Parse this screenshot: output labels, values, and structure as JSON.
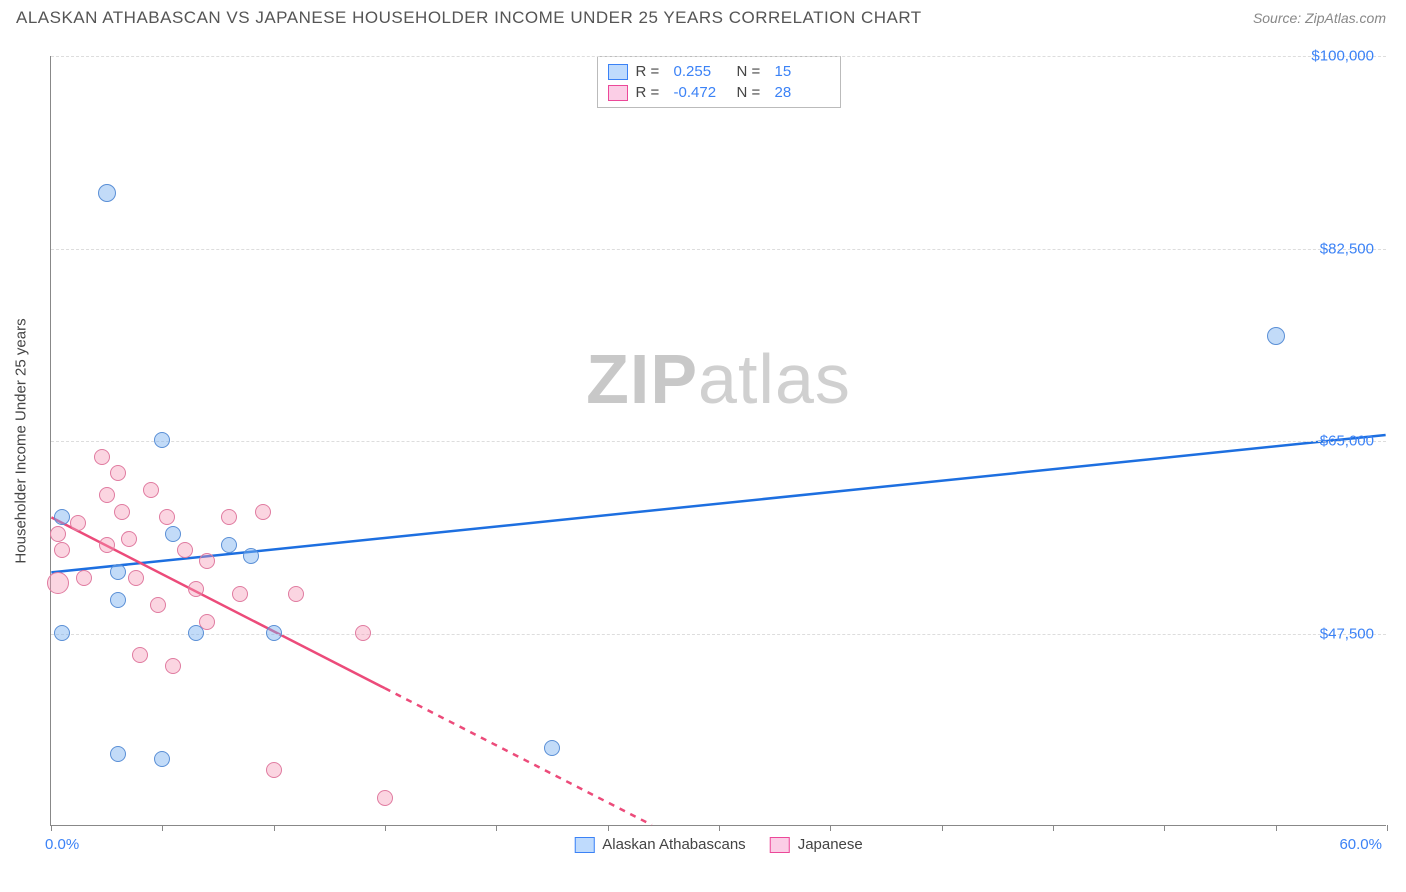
{
  "header": {
    "title": "ALASKAN ATHABASCAN VS JAPANESE HOUSEHOLDER INCOME UNDER 25 YEARS CORRELATION CHART",
    "source": "Source: ZipAtlas.com"
  },
  "chart": {
    "type": "scatter",
    "ylabel": "Householder Income Under 25 years",
    "watermark_prefix": "ZIP",
    "watermark_suffix": "atlas",
    "xlim": [
      0,
      60
    ],
    "ylim": [
      30000,
      100000
    ],
    "xmin_label": "0.0%",
    "xmax_label": "60.0%",
    "xtick_positions": [
      0,
      5,
      10,
      15,
      20,
      25,
      30,
      35,
      40,
      45,
      50,
      55,
      60
    ],
    "yticks": [
      {
        "v": 47500,
        "label": "$47,500"
      },
      {
        "v": 65000,
        "label": "$65,000"
      },
      {
        "v": 82500,
        "label": "$82,500"
      },
      {
        "v": 100000,
        "label": "$100,000"
      }
    ],
    "background_color": "#ffffff",
    "grid_color": "#dddddd",
    "marker_radius": 8,
    "series": {
      "blue": {
        "name": "Alaskan Athabascans",
        "color_fill": "rgba(120,175,240,0.45)",
        "color_stroke": "#5a8fd6",
        "trend_color": "#1d6fe0",
        "R": "0.255",
        "N": "15",
        "trend": {
          "x1": 0,
          "y1": 53000,
          "x2": 60,
          "y2": 65500,
          "solid_until_x": 60
        },
        "points": [
          {
            "x": 2.5,
            "y": 87500,
            "r": 9
          },
          {
            "x": 0.5,
            "y": 58000,
            "r": 8
          },
          {
            "x": 5.0,
            "y": 65000,
            "r": 8
          },
          {
            "x": 5.5,
            "y": 56500,
            "r": 8
          },
          {
            "x": 8.0,
            "y": 55500,
            "r": 8
          },
          {
            "x": 9.0,
            "y": 54500,
            "r": 8
          },
          {
            "x": 3.0,
            "y": 53000,
            "r": 8
          },
          {
            "x": 3.0,
            "y": 50500,
            "r": 8
          },
          {
            "x": 0.5,
            "y": 47500,
            "r": 8
          },
          {
            "x": 6.5,
            "y": 47500,
            "r": 8
          },
          {
            "x": 10.0,
            "y": 47500,
            "r": 8
          },
          {
            "x": 3.0,
            "y": 36500,
            "r": 8
          },
          {
            "x": 5.0,
            "y": 36000,
            "r": 8
          },
          {
            "x": 22.5,
            "y": 37000,
            "r": 8
          },
          {
            "x": 55.0,
            "y": 74500,
            "r": 9
          }
        ]
      },
      "pink": {
        "name": "Japanese",
        "color_fill": "rgba(244,150,180,0.4)",
        "color_stroke": "#e07ba0",
        "trend_color": "#ec4b7a",
        "R": "-0.472",
        "N": "28",
        "trend": {
          "x1": 0,
          "y1": 58000,
          "x2": 27,
          "y2": 30000,
          "dash_from_x": 15,
          "dash_to_x": 27
        },
        "points": [
          {
            "x": 0.3,
            "y": 56500,
            "r": 8
          },
          {
            "x": 0.5,
            "y": 55000,
            "r": 8
          },
          {
            "x": 0.3,
            "y": 52000,
            "r": 11
          },
          {
            "x": 1.2,
            "y": 57500,
            "r": 8
          },
          {
            "x": 1.5,
            "y": 52500,
            "r": 8
          },
          {
            "x": 2.3,
            "y": 63500,
            "r": 8
          },
          {
            "x": 2.5,
            "y": 60000,
            "r": 8
          },
          {
            "x": 2.5,
            "y": 55500,
            "r": 8
          },
          {
            "x": 3.0,
            "y": 62000,
            "r": 8
          },
          {
            "x": 3.2,
            "y": 58500,
            "r": 8
          },
          {
            "x": 3.5,
            "y": 56000,
            "r": 8
          },
          {
            "x": 3.8,
            "y": 52500,
            "r": 8
          },
          {
            "x": 4.0,
            "y": 45500,
            "r": 8
          },
          {
            "x": 4.5,
            "y": 60500,
            "r": 8
          },
          {
            "x": 4.8,
            "y": 50000,
            "r": 8
          },
          {
            "x": 5.2,
            "y": 58000,
            "r": 8
          },
          {
            "x": 5.5,
            "y": 44500,
            "r": 8
          },
          {
            "x": 6.0,
            "y": 55000,
            "r": 8
          },
          {
            "x": 6.5,
            "y": 51500,
            "r": 8
          },
          {
            "x": 7.0,
            "y": 54000,
            "r": 8
          },
          {
            "x": 8.0,
            "y": 58000,
            "r": 8
          },
          {
            "x": 8.5,
            "y": 51000,
            "r": 8
          },
          {
            "x": 9.5,
            "y": 58500,
            "r": 8
          },
          {
            "x": 10.0,
            "y": 35000,
            "r": 8
          },
          {
            "x": 11.0,
            "y": 51000,
            "r": 8
          },
          {
            "x": 14.0,
            "y": 47500,
            "r": 8
          },
          {
            "x": 15.0,
            "y": 32500,
            "r": 8
          },
          {
            "x": 7.0,
            "y": 48500,
            "r": 8
          }
        ]
      }
    }
  }
}
